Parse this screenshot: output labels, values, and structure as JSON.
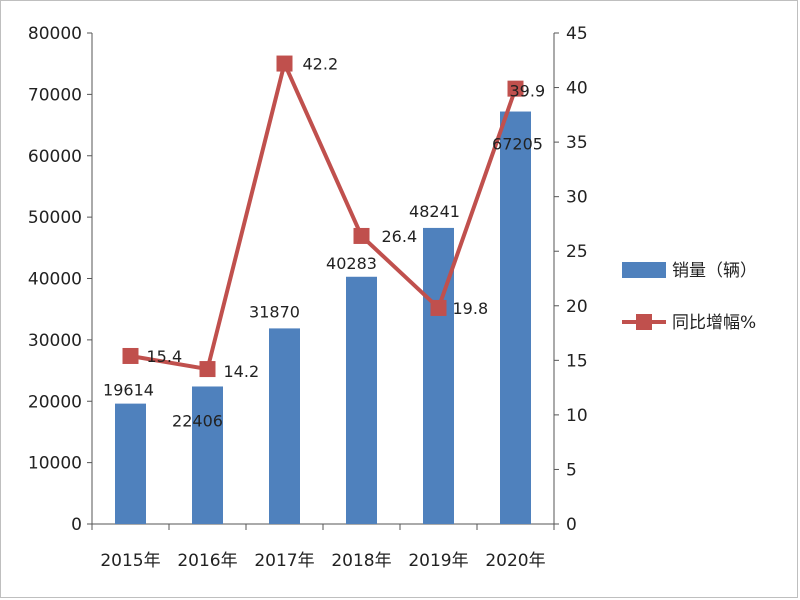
{
  "chart_data": {
    "type": "bar+line",
    "categories": [
      "2015年",
      "2016年",
      "2017年",
      "2018年",
      "2019年",
      "2020年"
    ],
    "series": [
      {
        "name": "销量（辆）",
        "type": "bar",
        "axis": "left",
        "values": [
          19614,
          22406,
          31870,
          40283,
          48241,
          67205
        ],
        "labels": [
          "19614",
          "22406",
          "31870",
          "40283",
          "48241",
          "67205"
        ],
        "color": "#4f81bd"
      },
      {
        "name": "同比增幅%",
        "type": "line",
        "axis": "right",
        "values": [
          15.4,
          14.2,
          42.2,
          26.4,
          19.8,
          39.9
        ],
        "labels": [
          "15.4",
          "14.2",
          "42.2",
          "26.4",
          "19.8",
          "39.9"
        ],
        "color": "#c0504d"
      }
    ],
    "y_left": {
      "min": 0,
      "max": 80000,
      "step": 10000,
      "ticks": [
        "0",
        "10000",
        "20000",
        "30000",
        "40000",
        "50000",
        "60000",
        "70000",
        "80000"
      ]
    },
    "y_right": {
      "min": 0,
      "max": 45,
      "step": 5,
      "ticks": [
        "0",
        "5",
        "10",
        "15",
        "20",
        "25",
        "30",
        "35",
        "40",
        "45"
      ]
    },
    "legend_position": "right",
    "grid": false
  }
}
